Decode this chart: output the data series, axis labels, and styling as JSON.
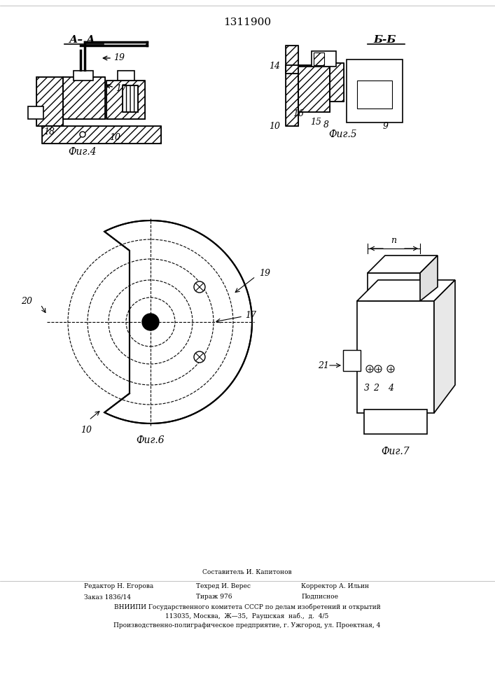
{
  "patent_number": "1311900",
  "fig4_label": "А– А",
  "fig5_label": "Б-Б",
  "fig6_caption": "Фиг.6",
  "fig4_caption": "Фиг.4",
  "fig5_caption": "Фиг.5",
  "fig7_caption": "Фиг.7",
  "footer_line1_left": "Редактор Н. Егорова",
  "footer_line1_center": "Составитель И. Капитонов",
  "footer_line1_right": "Корректор А. Ильин",
  "footer_line2_left": "Заказ 1836/14",
  "footer_line2_center": "Тираж 976",
  "footer_line2_right": "Подписное",
  "footer_line3": "ВНИИПИ Государственного комитета СССР по делам изобретений и открытий",
  "footer_line4": "113035, Москва,  Ж—35,  Раушская  наб.,  д.  4/5",
  "footer_line5": "Производственно-полиграфическое предприятие, г. Ужгород, ул. Проектная, 4",
  "footer_techred": "Техред И. Верес",
  "bg_color": "#ffffff",
  "line_color": "#000000"
}
